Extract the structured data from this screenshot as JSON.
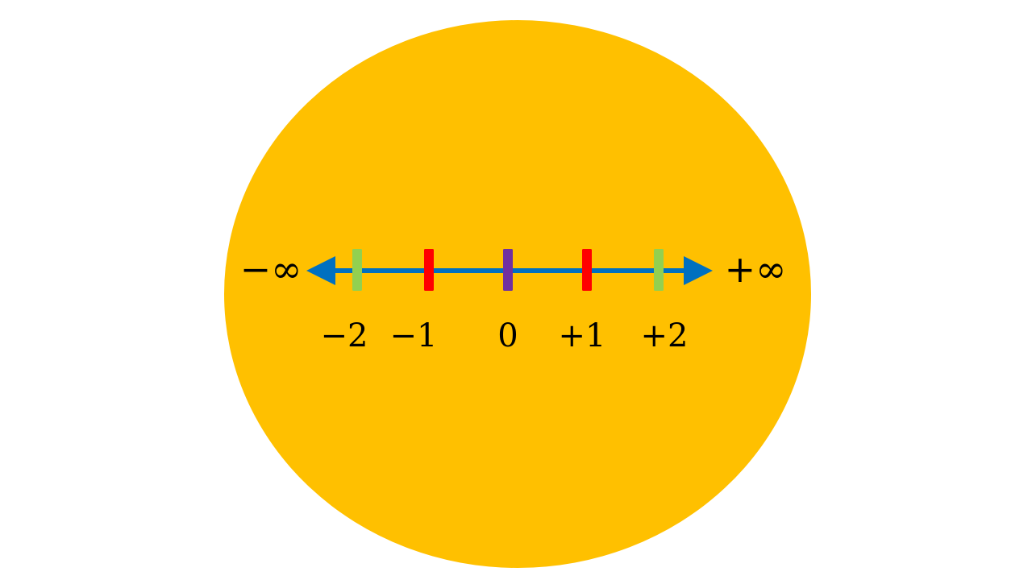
{
  "diagram": {
    "background_color": "#ffffff",
    "disk_color": "#FFC000",
    "axis_color": "#0070C0",
    "left_end_label": "−∞",
    "right_end_label": "+∞",
    "ticks": [
      {
        "label": "−2",
        "value": -2,
        "color": "#92D050"
      },
      {
        "label": "−1",
        "value": -1,
        "color": "#FF0000"
      },
      {
        "label": "0",
        "value": 0,
        "color": "#7030A0"
      },
      {
        "label": "+1",
        "value": 1,
        "color": "#FF0000"
      },
      {
        "label": "+2",
        "value": 2,
        "color": "#92D050"
      }
    ]
  }
}
